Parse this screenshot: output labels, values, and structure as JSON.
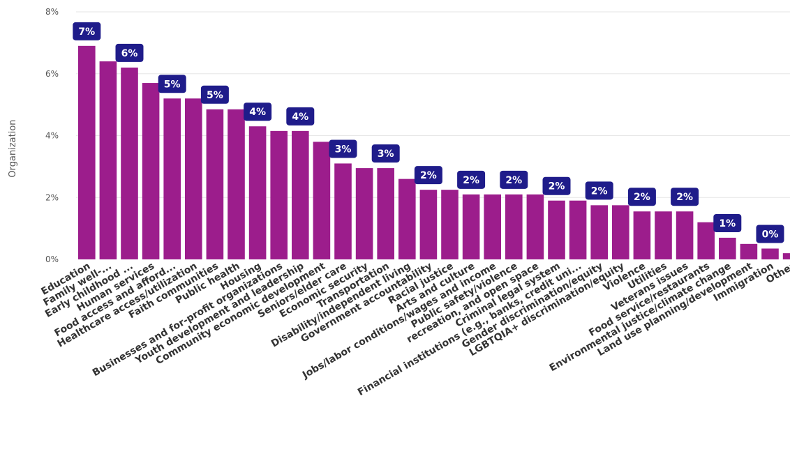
{
  "colors": {
    "bar": "#9c1d8c",
    "label_bg": "#1f1c8a",
    "label_text": "#ffffff",
    "tick_text": "#555555",
    "category_text": "#333333",
    "grid": "#e6e6e6"
  },
  "chart_data": {
    "type": "bar",
    "title": "",
    "xlabel": "",
    "ylabel": "Organization",
    "ylim": [
      0,
      8
    ],
    "y_ticks": [
      {
        "value": 0,
        "label": "0%"
      },
      {
        "value": 2,
        "label": "2%"
      },
      {
        "value": 4,
        "label": "4%"
      },
      {
        "value": 6,
        "label": "6%"
      },
      {
        "value": 8,
        "label": "8%"
      }
    ],
    "grid": true,
    "legend": "none",
    "categories": [
      "Education",
      "Family well-...",
      "Early childhood ...",
      "Human services",
      "Food access and afford...",
      "Healthcare access/utilization",
      "Faith communities",
      "Public health",
      "Housing",
      "Businesses and for-profit organizations",
      "Youth development and leadership",
      "Community economic development",
      "Seniors/elder care",
      "Economic security",
      "Transportation",
      "Disability/independent living",
      "Government accountability",
      "Racial justice",
      "Arts and culture",
      "Jobs/labor conditions/wages and income",
      "Public safety/violence",
      "recreation, and open space",
      "Criminal legal system",
      "Financial institutions (e.g., banks, credit uni...",
      "Gender discrimination/equity",
      "LGBTQIA+ discrimination/equity",
      "Violence",
      "Utilities",
      "Veterans issues",
      "Food service/restaurants",
      "Environmental justice/climate change",
      "Land use planning/development",
      "Immigration",
      "Other"
    ],
    "values": [
      6.9,
      6.4,
      6.2,
      5.7,
      5.2,
      5.2,
      4.85,
      4.85,
      4.3,
      4.15,
      4.15,
      3.8,
      3.1,
      2.95,
      2.95,
      2.6,
      2.25,
      2.25,
      2.1,
      2.1,
      2.1,
      2.1,
      1.9,
      1.9,
      1.75,
      1.75,
      1.55,
      1.55,
      1.55,
      1.2,
      0.7,
      0.5,
      0.35,
      0.2
    ],
    "data_labels": [
      {
        "index": 0,
        "text": "7%"
      },
      {
        "index": 2,
        "text": "6%"
      },
      {
        "index": 4,
        "text": "5%"
      },
      {
        "index": 6,
        "text": "5%"
      },
      {
        "index": 8,
        "text": "4%"
      },
      {
        "index": 10,
        "text": "4%"
      },
      {
        "index": 12,
        "text": "3%"
      },
      {
        "index": 14,
        "text": "3%"
      },
      {
        "index": 16,
        "text": "2%"
      },
      {
        "index": 18,
        "text": "2%"
      },
      {
        "index": 20,
        "text": "2%"
      },
      {
        "index": 22,
        "text": "2%"
      },
      {
        "index": 24,
        "text": "2%"
      },
      {
        "index": 26,
        "text": "2%"
      },
      {
        "index": 28,
        "text": "2%"
      },
      {
        "index": 30,
        "text": "1%"
      },
      {
        "index": 32,
        "text": "0%"
      }
    ]
  }
}
